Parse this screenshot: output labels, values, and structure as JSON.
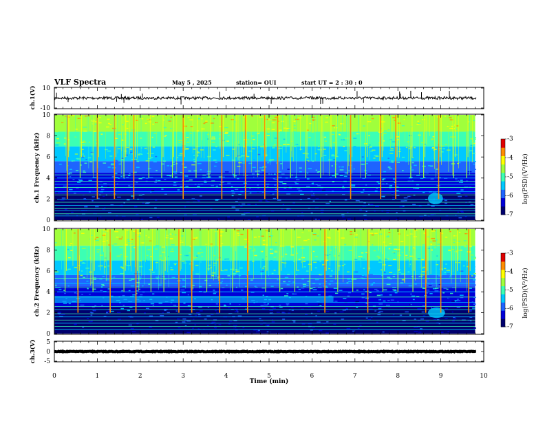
{
  "header": {
    "title": "VLF Spectra",
    "date": "May 5 , 2025",
    "station": "station= OUI",
    "start": "start UT = 2 : 30 : 0"
  },
  "colors": {
    "palette": [
      "#00006e",
      "#0000d8",
      "#1e64ff",
      "#00c8ff",
      "#3cffb4",
      "#a0ff3c",
      "#ffff00",
      "#ff8c00",
      "#e00000"
    ],
    "background": "#ffffff"
  },
  "chart_data": [
    {
      "type": "line",
      "name": "ch1-waveform",
      "ylabel": "ch.1(V)",
      "ylim": [
        -10,
        10
      ],
      "y_ticks": [
        "10",
        "-10"
      ],
      "xlim": [
        0,
        10
      ],
      "baseline": 0,
      "spikes_min": [
        0.05,
        0.32,
        1.45,
        1.56,
        1.62,
        2.05,
        2.95,
        3.85,
        4.65,
        5.05,
        6.2,
        6.25,
        7.05,
        7.2,
        8.04,
        8.06,
        8.3,
        8.55,
        9.2
      ]
    },
    {
      "type": "heatmap",
      "name": "ch1-spectrogram",
      "ylabel": "ch.1 Frequency (kHz)",
      "xlim": [
        0,
        9.8
      ],
      "ylim": [
        0,
        10
      ],
      "y_ticks": [
        "0",
        "2",
        "4",
        "6",
        "8",
        "10"
      ],
      "colorbar": {
        "label": "log(PSD)(V²/Hz)",
        "range": [
          -7,
          -3
        ],
        "ticks": [
          "-3",
          "-4",
          "-5",
          "-6",
          "-7"
        ]
      },
      "horizontal_lines_khz": [
        0.4,
        0.6,
        0.9,
        1.1,
        1.4,
        1.7,
        2.0,
        2.4,
        2.7,
        3.1,
        3.4,
        3.7,
        4.0,
        4.3
      ],
      "bursts_min": [
        0.3,
        0.6,
        1.0,
        1.4,
        1.62,
        1.85,
        2.2,
        2.5,
        2.75,
        3.0,
        3.3,
        3.6,
        3.9,
        4.2,
        4.45,
        4.9,
        5.2,
        5.5,
        5.85,
        6.2,
        6.55,
        6.9,
        7.25,
        7.6,
        7.95,
        8.3,
        8.6,
        8.95,
        9.3,
        9.6
      ],
      "features": [
        {
          "name": "hiss",
          "t_min": 8.7,
          "t_max": 9.05,
          "f_khz": [
            1.5,
            2.6
          ]
        }
      ]
    },
    {
      "type": "heatmap",
      "name": "ch2-spectrogram",
      "ylabel": "ch.2 Frequency (kHz)",
      "xlim": [
        0,
        9.8
      ],
      "ylim": [
        0,
        10
      ],
      "y_ticks": [
        "0",
        "2",
        "4",
        "6",
        "8",
        "10"
      ],
      "colorbar": {
        "label": "log(PSD)(V²/Hz)",
        "range": [
          -7,
          -3
        ],
        "ticks": [
          "-3",
          "-4",
          "-5",
          "-6",
          "-7"
        ]
      },
      "horizontal_lines_khz": [
        0.4,
        0.7,
        1.0,
        1.3,
        1.6,
        1.9,
        2.3,
        2.6,
        3.0,
        3.5,
        4.0,
        4.4,
        4.8,
        5.3
      ],
      "bursts_min": [
        0.25,
        0.55,
        0.9,
        1.3,
        1.62,
        1.9,
        2.25,
        2.55,
        2.9,
        3.2,
        3.55,
        3.85,
        4.15,
        4.5,
        4.92,
        5.25,
        5.6,
        5.95,
        6.3,
        6.6,
        6.95,
        7.3,
        7.65,
        8.0,
        8.35,
        8.65,
        9.0,
        9.35,
        9.65
      ],
      "bands": [
        {
          "name": "band-3.3kHz",
          "t_min": 0.0,
          "t_max": 6.5,
          "f_khz": [
            3.0,
            3.6
          ]
        }
      ],
      "features": [
        {
          "name": "hiss",
          "t_min": 8.7,
          "t_max": 9.1,
          "f_khz": [
            1.5,
            2.5
          ]
        }
      ]
    },
    {
      "type": "line",
      "name": "ch3-waveform",
      "ylabel": "ch.3(V)",
      "ylim": [
        -5,
        5
      ],
      "y_ticks": [
        "5",
        "0",
        "-5"
      ],
      "xlim": [
        0,
        10
      ],
      "baseline": 0
    }
  ],
  "x_axis": {
    "label": "Time (min)",
    "range": [
      0,
      10
    ],
    "ticks": [
      "0",
      "1",
      "2",
      "3",
      "4",
      "5",
      "6",
      "7",
      "8",
      "9",
      "10"
    ]
  }
}
